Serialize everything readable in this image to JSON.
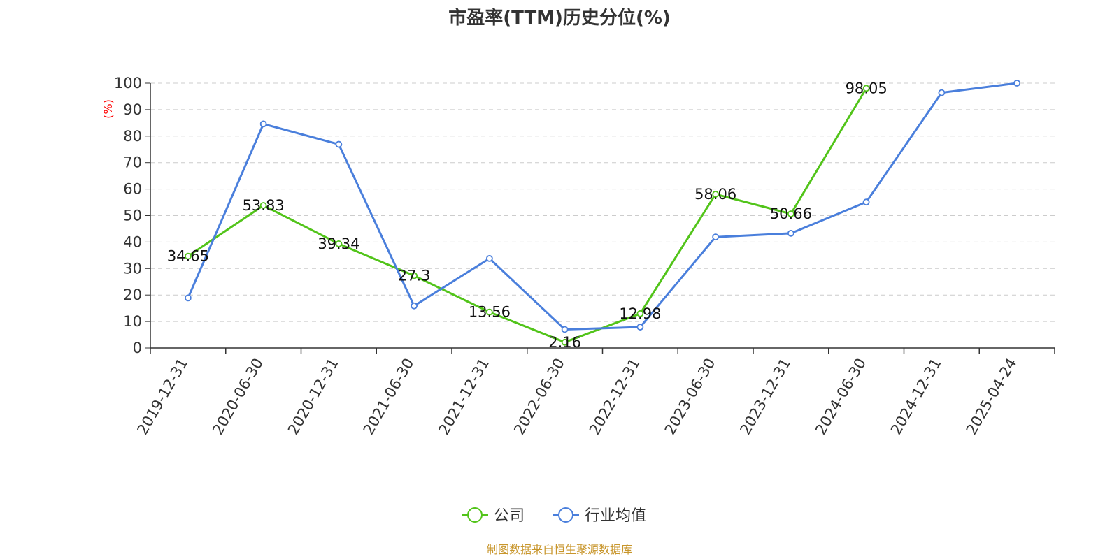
{
  "chart_data": {
    "type": "line",
    "title": "市盈率(TTM)历史分位(%)",
    "ylabel": "(%)",
    "ylim": [
      0,
      100
    ],
    "yticks": [
      0,
      10,
      20,
      30,
      40,
      50,
      60,
      70,
      80,
      90,
      100
    ],
    "grid": true,
    "legend_placement": "bottom-center",
    "categories": [
      "2019-12-31",
      "2020-06-30",
      "2020-12-31",
      "2021-06-30",
      "2021-12-31",
      "2022-06-30",
      "2022-12-31",
      "2023-06-30",
      "2023-12-31",
      "2024-06-30",
      "2024-12-31",
      "2025-04-24"
    ],
    "series": [
      {
        "name": "公司",
        "color": "#52c41a",
        "values": [
          34.65,
          53.83,
          39.34,
          27.3,
          13.56,
          2.16,
          12.98,
          58.06,
          50.66,
          98.05,
          null,
          null
        ],
        "labels_shown": true
      },
      {
        "name": "行业均值",
        "color": "#4a7fdc",
        "values": [
          18.9,
          84.6,
          76.9,
          15.9,
          33.8,
          7.0,
          7.9,
          41.9,
          43.3,
          55.1,
          96.4,
          100.0
        ],
        "labels_shown": false
      }
    ],
    "unit_color": "#ff0000"
  },
  "footer": {
    "source": "制图数据来自恒生聚源数据库",
    "source_color": "#c8962c"
  }
}
